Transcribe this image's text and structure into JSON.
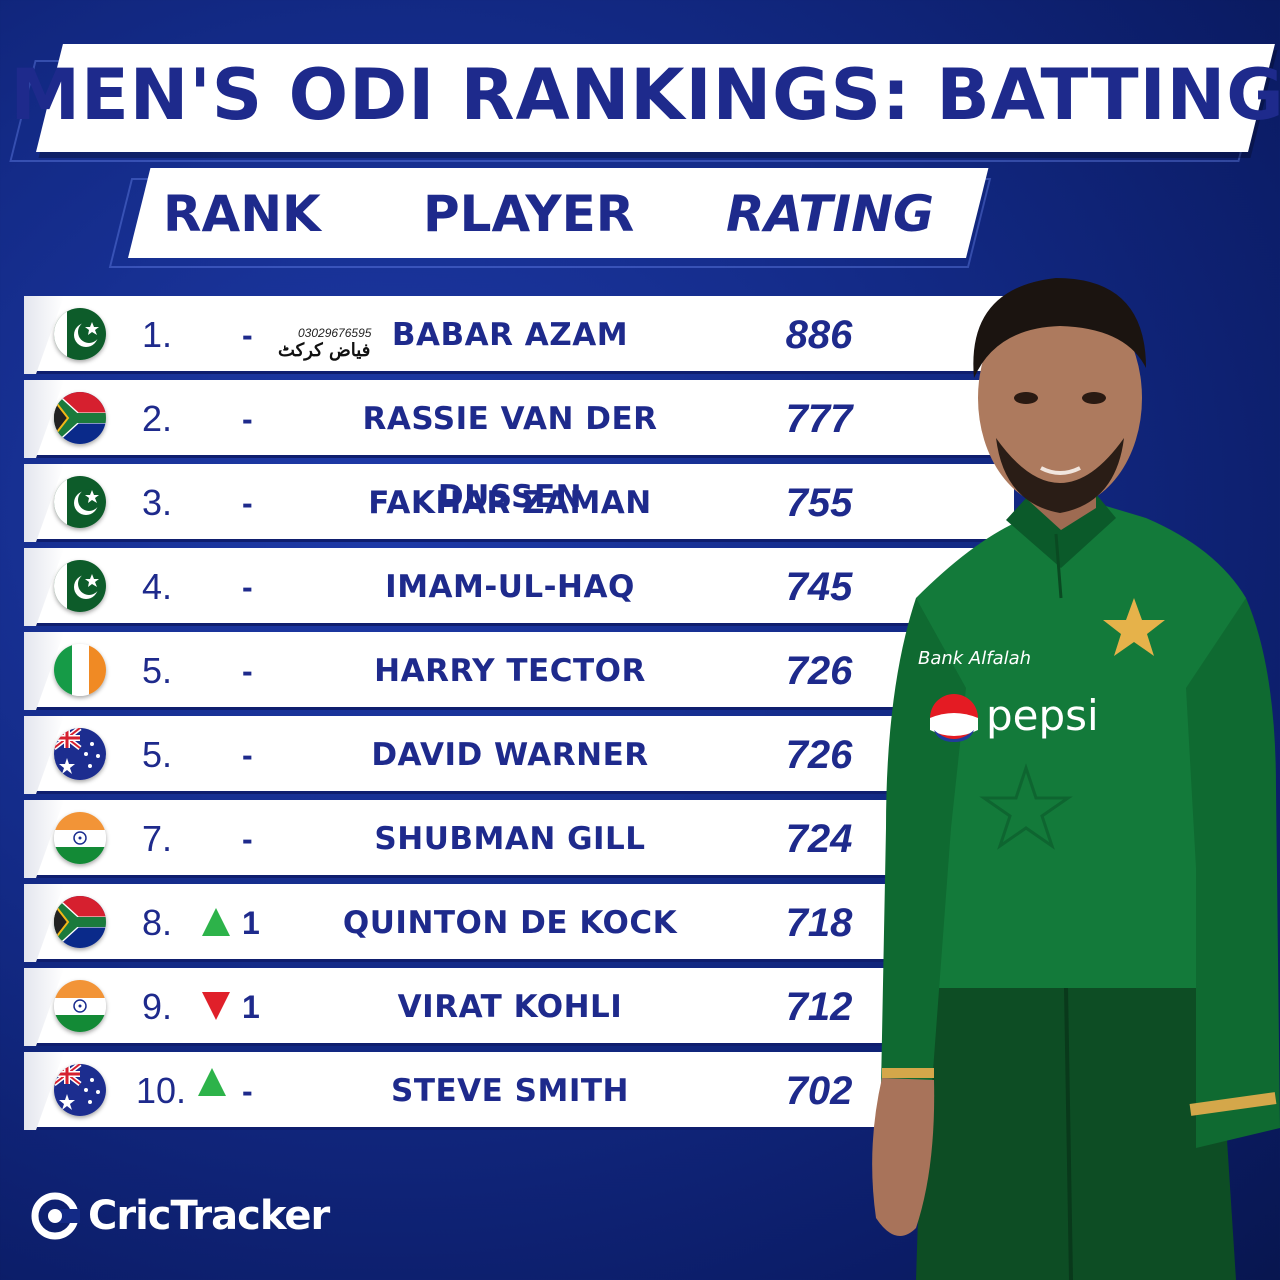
{
  "title": "MEN'S ODI RANKINGS: BATTING",
  "headers": {
    "rank": "RANK",
    "player": "PLAYER",
    "rating": "RATING"
  },
  "watermark": {
    "number": "03029676595",
    "script": "فیاض کرکٹ"
  },
  "rows": [
    {
      "flag": "pakistan",
      "rank": "1.",
      "move": "none",
      "change": "-",
      "player": "BABAR AZAM",
      "rating": "886"
    },
    {
      "flag": "south-africa",
      "rank": "2.",
      "move": "none",
      "change": "-",
      "player": "RASSIE VAN DER DUSSEN",
      "rating": "777"
    },
    {
      "flag": "pakistan",
      "rank": "3.",
      "move": "none",
      "change": "-",
      "player": "FAKHAR ZAMAN",
      "rating": "755"
    },
    {
      "flag": "pakistan",
      "rank": "4.",
      "move": "none",
      "change": "-",
      "player": "IMAM-UL-HAQ",
      "rating": "745"
    },
    {
      "flag": "ireland",
      "rank": "5.",
      "move": "none",
      "change": "-",
      "player": "HARRY TECTOR",
      "rating": "726"
    },
    {
      "flag": "australia",
      "rank": "5.",
      "move": "none",
      "change": "-",
      "player": "DAVID WARNER",
      "rating": "726"
    },
    {
      "flag": "india",
      "rank": "7.",
      "move": "none",
      "change": "-",
      "player": "SHUBMAN GILL",
      "rating": "724"
    },
    {
      "flag": "south-africa",
      "rank": "8.",
      "move": "up",
      "change": "1",
      "player": "QUINTON DE KOCK",
      "rating": "718"
    },
    {
      "flag": "india",
      "rank": "9.",
      "move": "down",
      "change": "1",
      "player": "VIRAT KOHLI",
      "rating": "712"
    },
    {
      "flag": "australia",
      "rank": "10.",
      "move": "up",
      "change": "-",
      "player": "STEVE SMITH",
      "rating": "702"
    }
  ],
  "sponsor": {
    "chest_text": "pepsi",
    "badge_text": "Bank Alfalah"
  },
  "logo": {
    "text": "CricTracker",
    "icon": "crictracker-logo-icon"
  },
  "colors": {
    "text": "#1e2a8c",
    "up": "#2db34a",
    "down": "#e0202a",
    "background": "#132a86"
  }
}
